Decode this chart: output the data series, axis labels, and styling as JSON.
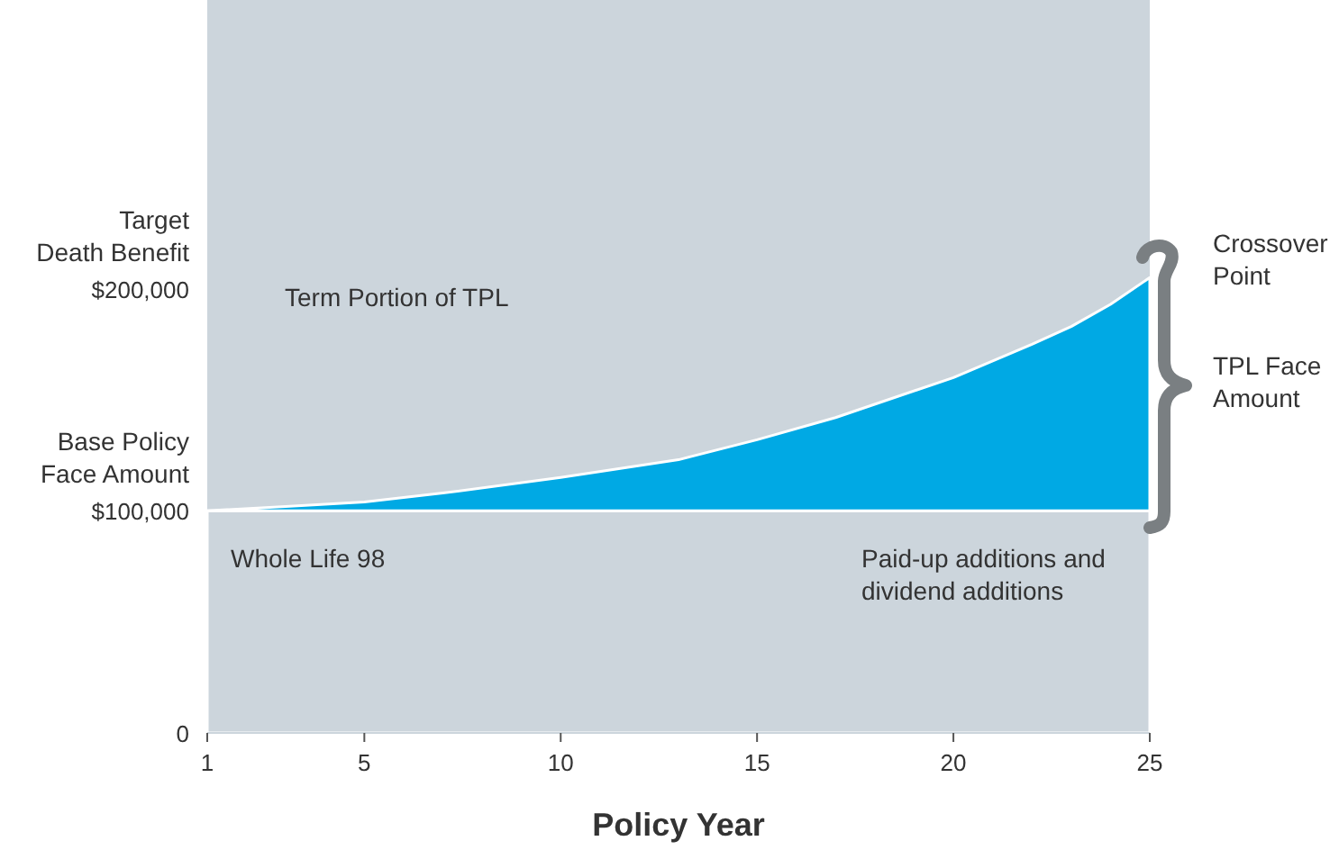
{
  "chart_data": {
    "type": "area",
    "xlabel": "Policy Year",
    "x": [
      1,
      3,
      5,
      7,
      10,
      13,
      15,
      17,
      20,
      22,
      23,
      24,
      25
    ],
    "series": [
      {
        "color": "#ccd5dc",
        "values": [
          100000,
          100000,
          100000,
          100000,
          100000,
          100000,
          100000,
          100000,
          100000,
          100000,
          100000,
          100000,
          100000
        ]
      },
      {
        "color": "#00a9e4",
        "values": [
          0,
          2000,
          4000,
          8000,
          15000,
          23000,
          32000,
          42000,
          60000,
          75000,
          83000,
          93000,
          105000
        ]
      }
    ],
    "stacked": true,
    "xlim": [
      1,
      25
    ],
    "xticks": [
      1,
      5,
      10,
      15,
      20,
      25
    ],
    "ylim": [
      0,
      330000
    ],
    "yticks": [
      0,
      {
        "value": 100000,
        "label": "$100,000"
      },
      {
        "value": 200000,
        "label": "$200,000"
      }
    ],
    "grid": false,
    "annotations": [
      "Term Portion of TPL",
      "Whole Life 98",
      "Paid-up additions and\ndividend additions",
      "Crossover\nPoint",
      "TPL Face\nAmount",
      "Base Policy\nFace Amount",
      "Target\nDeath Benefit"
    ]
  }
}
